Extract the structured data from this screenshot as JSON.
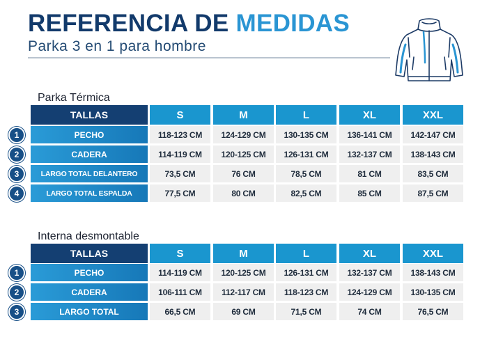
{
  "header": {
    "title_part1": "REFERENCIA DE",
    "title_part2": "MEDIDAS",
    "subtitle": "Parka 3 en 1 para hombre"
  },
  "icons": {
    "product": "jacket-icon"
  },
  "colors": {
    "title_dark": "#123a6b",
    "title_accent": "#2a95d3",
    "header_dark": "#143f72",
    "header_size": "#1a96cf",
    "row_label": "#1e88c8",
    "badge": "#174f87",
    "cell_bg": "#efefef"
  },
  "tables": [
    {
      "label": "Parka Térmica",
      "header": [
        "TALLAS",
        "S",
        "M",
        "L",
        "XL",
        "XXL"
      ],
      "rows": [
        {
          "num": "1",
          "label": "PECHO",
          "values": [
            "118-123 CM",
            "124-129 CM",
            "130-135 CM",
            "136-141 CM",
            "142-147 CM"
          ]
        },
        {
          "num": "2",
          "label": "CADERA",
          "values": [
            "114-119 CM",
            "120-125 CM",
            "126-131 CM",
            "132-137 CM",
            "138-143 CM"
          ]
        },
        {
          "num": "3",
          "label": "LARGO TOTAL DELANTERO",
          "values": [
            "73,5 CM",
            "76 CM",
            "78,5 CM",
            "81 CM",
            "83,5 CM"
          ]
        },
        {
          "num": "4",
          "label": "LARGO TOTAL ESPALDA",
          "values": [
            "77,5 CM",
            "80 CM",
            "82,5 CM",
            "85 CM",
            "87,5 CM"
          ]
        }
      ]
    },
    {
      "label": "Interna desmontable",
      "header": [
        "TALLAS",
        "S",
        "M",
        "L",
        "XL",
        "XXL"
      ],
      "rows": [
        {
          "num": "1",
          "label": "PECHO",
          "values": [
            "114-119 CM",
            "120-125 CM",
            "126-131 CM",
            "132-137 CM",
            "138-143 CM"
          ]
        },
        {
          "num": "2",
          "label": "CADERA",
          "values": [
            "106-111 CM",
            "112-117 CM",
            "118-123 CM",
            "124-129 CM",
            "130-135 CM"
          ]
        },
        {
          "num": "3",
          "label": "LARGO TOTAL",
          "values": [
            "66,5 CM",
            "69 CM",
            "71,5 CM",
            "74 CM",
            "76,5 CM"
          ]
        }
      ]
    }
  ]
}
